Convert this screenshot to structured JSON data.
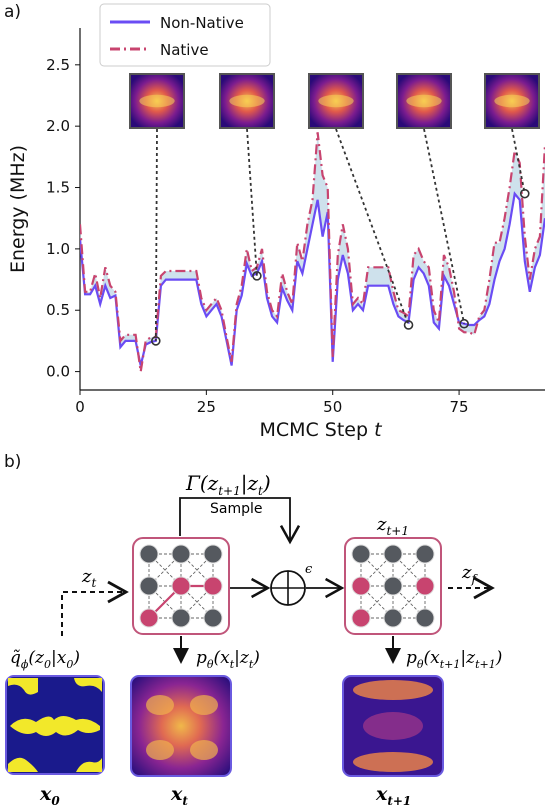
{
  "panel_a": {
    "label": "a)",
    "chart_data": {
      "type": "line",
      "title": "",
      "xlabel": "MCMC Step",
      "xlabel_var": "t",
      "ylabel": "Energy (MHz)",
      "xlim": [
        0,
        92
      ],
      "ylim": [
        -0.15,
        2.8
      ],
      "xticks": [
        0,
        25,
        50,
        75
      ],
      "yticks": [
        0.0,
        0.5,
        1.0,
        1.5,
        2.0,
        2.5
      ],
      "legend_position": "top-left",
      "fill_between": true,
      "series": [
        {
          "name": "Non-Native",
          "color": "#6a4cf4",
          "style": "solid",
          "values": [
            1.08,
            0.63,
            0.63,
            0.7,
            0.55,
            0.7,
            0.6,
            0.62,
            0.2,
            0.25,
            0.25,
            0.25,
            0.05,
            0.22,
            0.24,
            0.25,
            0.7,
            0.75,
            0.75,
            0.75,
            0.75,
            0.75,
            0.75,
            0.75,
            0.55,
            0.45,
            0.5,
            0.55,
            0.45,
            0.25,
            0.05,
            0.5,
            0.62,
            0.88,
            0.78,
            0.8,
            0.9,
            0.6,
            0.45,
            0.4,
            0.68,
            0.58,
            0.5,
            0.9,
            0.8,
            1.0,
            1.2,
            1.4,
            1.1,
            1.3,
            0.08,
            0.75,
            0.95,
            0.8,
            0.5,
            0.55,
            0.5,
            0.7,
            0.7,
            0.7,
            0.7,
            0.7,
            0.55,
            0.45,
            0.42,
            0.4,
            0.75,
            0.85,
            0.8,
            0.7,
            0.4,
            0.35,
            0.78,
            0.7,
            0.55,
            0.4,
            0.39,
            0.38,
            0.38,
            0.42,
            0.45,
            0.55,
            0.75,
            0.9,
            1.0,
            1.2,
            1.45,
            1.4,
            0.9,
            0.65,
            0.85,
            0.95,
            1.25
          ]
        },
        {
          "name": "Native",
          "color": "#c8446f",
          "style": "dashdot",
          "values": [
            1.2,
            0.65,
            0.65,
            0.8,
            0.6,
            0.85,
            0.7,
            0.65,
            0.25,
            0.3,
            0.3,
            0.3,
            0.0,
            0.25,
            0.28,
            0.28,
            0.78,
            0.82,
            0.82,
            0.82,
            0.82,
            0.82,
            0.82,
            0.82,
            0.6,
            0.5,
            0.55,
            0.6,
            0.5,
            0.28,
            0.08,
            0.55,
            0.7,
            1.0,
            0.82,
            0.85,
            1.0,
            0.65,
            0.5,
            0.45,
            0.8,
            0.65,
            0.55,
            1.05,
            0.9,
            1.2,
            1.4,
            1.95,
            1.6,
            1.5,
            0.12,
            0.95,
            1.2,
            1.0,
            0.55,
            0.6,
            0.55,
            0.85,
            0.85,
            0.85,
            0.85,
            0.85,
            0.65,
            0.5,
            0.48,
            0.45,
            0.95,
            1.0,
            0.9,
            0.85,
            0.5,
            0.4,
            0.95,
            0.85,
            0.65,
            0.35,
            0.32,
            0.32,
            0.3,
            0.45,
            0.5,
            0.75,
            1.05,
            1.05,
            1.25,
            1.5,
            1.8,
            1.7,
            1.1,
            0.75,
            1.0,
            1.1,
            1.85
          ]
        }
      ],
      "annotated_points": [
        {
          "x": 15,
          "y": 0.25
        },
        {
          "x": 35,
          "y": 0.78
        },
        {
          "x": 65,
          "y": 0.38
        },
        {
          "x": 76,
          "y": 0.39
        },
        {
          "x": 88,
          "y": 1.45
        }
      ],
      "inset_count": 5
    }
  },
  "panel_b": {
    "label": "b)",
    "gamma_label": "Γ(z",
    "gamma_sub": "t+1",
    "gamma_mid": "|z",
    "gamma_sub2": "t",
    "gamma_end": ")",
    "sample_label": "Sample",
    "epsilon": "ϵ",
    "z_t": "z",
    "z_t_sub": "t",
    "z_next": "z",
    "z_next_sub": "t+1",
    "z_f": "z",
    "z_f_sub": "f",
    "q_label": "q̃",
    "q_sub": "ϕ",
    "q_args": "(z",
    "q_args_sub": "0",
    "q_args_mid": "|x",
    "q_args_sub2": "0",
    "q_args_end": ")",
    "p_label": "p",
    "p_sub": "θ",
    "p_args": "(x",
    "p_args_sub": "t",
    "p_args_mid": "|z",
    "p_args_sub2": "t",
    "p_args_end": ")",
    "p2_label": "p",
    "p2_sub": "θ",
    "p2_args": "(x",
    "p2_args_sub": "t+1",
    "p2_args_mid": "|z",
    "p2_args_sub2": "t+1",
    "p2_args_end": ")",
    "x0": "x",
    "x0_sub": "0",
    "xt": "x",
    "xt_sub": "t",
    "xt1": "x",
    "xt1_sub": "t+1",
    "colors": {
      "box_border": "#c0557a",
      "node_dark": "#55595f",
      "node_active": "#c8446f",
      "image_border": "#6a5ae0"
    }
  }
}
